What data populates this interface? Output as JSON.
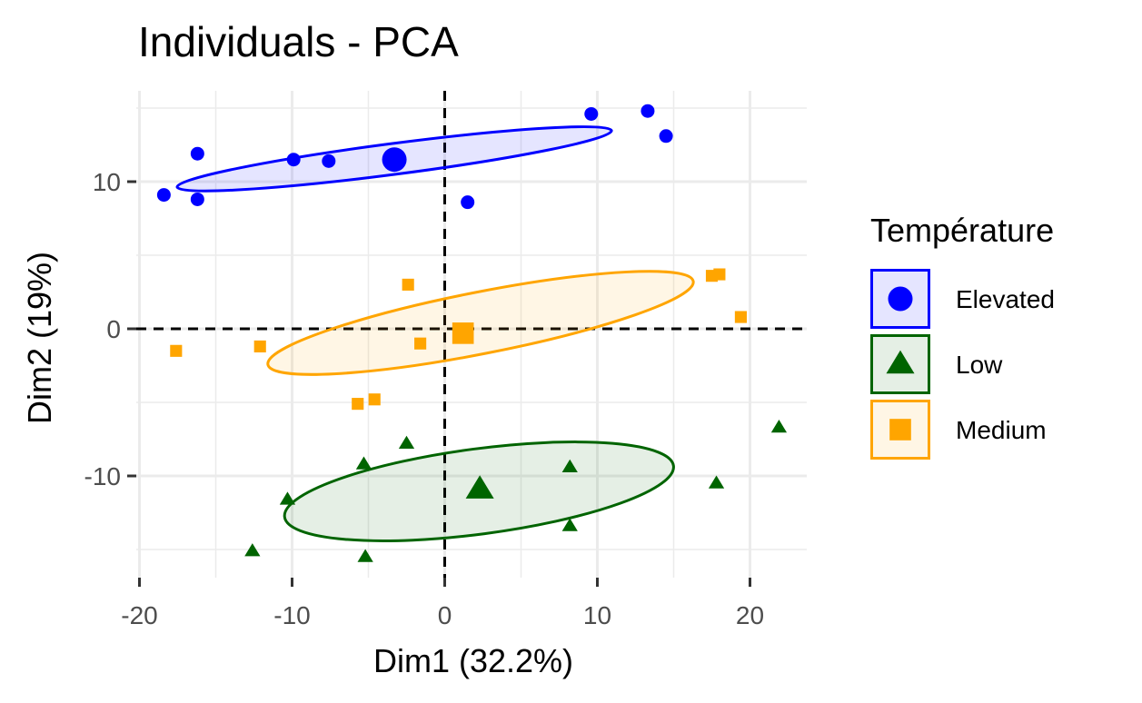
{
  "chart_data": {
    "type": "scatter",
    "title": "Individuals - PCA",
    "xlabel": "Dim1 (32.2%)",
    "ylabel": "Dim2 (19%)",
    "xlim": [
      -20,
      24
    ],
    "ylim": [
      -16.5,
      16
    ],
    "x_ticks": [
      -20,
      -10,
      0,
      10,
      20
    ],
    "x_tick_labels": [
      "-20",
      "-10",
      "0",
      "10",
      "20"
    ],
    "y_ticks": [
      -10,
      0,
      10
    ],
    "y_tick_labels": [
      "-10",
      "0",
      "10"
    ],
    "grid": true,
    "reference_lines": {
      "x": 0,
      "y": 0,
      "style": "dashed"
    },
    "legend": {
      "title": "Température",
      "position": "right"
    },
    "series": [
      {
        "name": "Elevated",
        "color": "#0000ff",
        "marker": "circle",
        "points": [
          {
            "x": -18.4,
            "y": 9.1
          },
          {
            "x": -16.2,
            "y": 11.9
          },
          {
            "x": -16.2,
            "y": 8.8
          },
          {
            "x": -9.9,
            "y": 11.5
          },
          {
            "x": -7.6,
            "y": 11.4
          },
          {
            "x": 1.5,
            "y": 8.6
          },
          {
            "x": 9.6,
            "y": 14.6
          },
          {
            "x": 13.3,
            "y": 14.8
          },
          {
            "x": 14.5,
            "y": 13.1
          }
        ],
        "centroid": {
          "x": -3.3,
          "y": 11.5
        },
        "ellipse": {
          "cx": -3.3,
          "cy": 11.55,
          "rx": 14.35,
          "ry": 1.05,
          "angle_deg": 7.4
        }
      },
      {
        "name": "Low",
        "color": "#006400",
        "marker": "triangle",
        "points": [
          {
            "x": -12.6,
            "y": -15.1
          },
          {
            "x": -10.3,
            "y": -11.6
          },
          {
            "x": -5.3,
            "y": -9.2
          },
          {
            "x": -5.2,
            "y": -15.5
          },
          {
            "x": -2.5,
            "y": -7.8
          },
          {
            "x": 8.2,
            "y": -9.4
          },
          {
            "x": 8.2,
            "y": -13.4
          },
          {
            "x": 17.8,
            "y": -10.5
          },
          {
            "x": 21.9,
            "y": -6.7
          }
        ],
        "centroid": {
          "x": 2.3,
          "y": -10.9
        },
        "ellipse": {
          "cx": 2.25,
          "cy": -11.05,
          "rx": 12.85,
          "ry": 2.9,
          "angle_deg": 7.5
        }
      },
      {
        "name": "Medium",
        "color": "#ffa500",
        "marker": "square",
        "points": [
          {
            "x": -17.6,
            "y": -1.5
          },
          {
            "x": -12.1,
            "y": -1.2
          },
          {
            "x": -5.7,
            "y": -5.1
          },
          {
            "x": -4.6,
            "y": -4.8
          },
          {
            "x": -2.4,
            "y": 3.0
          },
          {
            "x": -1.6,
            "y": -1.0
          },
          {
            "x": 1.4,
            "y": -0.1
          },
          {
            "x": 17.5,
            "y": 3.6
          },
          {
            "x": 18.0,
            "y": 3.7
          },
          {
            "x": 19.4,
            "y": 0.8
          }
        ],
        "centroid": {
          "x": 1.2,
          "y": -0.3
        },
        "ellipse": {
          "cx": 2.35,
          "cy": 0.4,
          "rx": 14.2,
          "ry": 2.1,
          "angle_deg": 11.1
        }
      }
    ]
  }
}
